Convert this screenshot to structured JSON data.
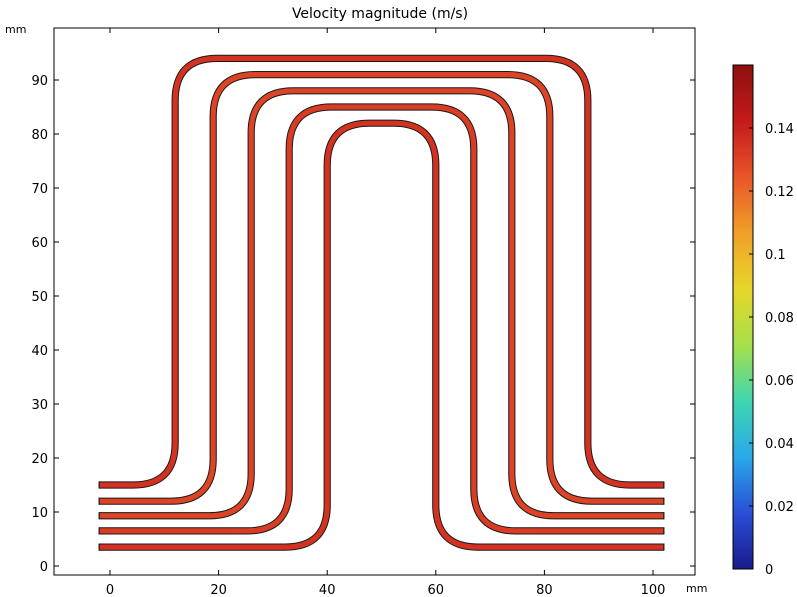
{
  "chart_data": {
    "type": "heatmap",
    "title": "Velocity magnitude (m/s)",
    "x_unit": "mm",
    "y_unit": "mm",
    "xlim": [
      -10,
      107
    ],
    "ylim": [
      -2,
      100
    ],
    "x_ticks": [
      {
        "value": 0,
        "label": "0"
      },
      {
        "value": 20,
        "label": "20"
      },
      {
        "value": 40,
        "label": "40"
      },
      {
        "value": 60,
        "label": "60"
      },
      {
        "value": 80,
        "label": "80"
      },
      {
        "value": 100,
        "label": "100"
      }
    ],
    "y_ticks": [
      {
        "value": 0,
        "label": "0"
      },
      {
        "value": 10,
        "label": "10"
      },
      {
        "value": 20,
        "label": "20"
      },
      {
        "value": 30,
        "label": "30"
      },
      {
        "value": 40,
        "label": "40"
      },
      {
        "value": 50,
        "label": "50"
      },
      {
        "value": 60,
        "label": "60"
      },
      {
        "value": 70,
        "label": "70"
      },
      {
        "value": 80,
        "label": "80"
      },
      {
        "value": 90,
        "label": "90"
      }
    ],
    "colorbar": {
      "range": [
        0,
        0.16
      ],
      "ticks": [
        {
          "value": 0,
          "label": "0"
        },
        {
          "value": 0.02,
          "label": "0.02"
        },
        {
          "value": 0.04,
          "label": "0.04"
        },
        {
          "value": 0.06,
          "label": "0.06"
        },
        {
          "value": 0.08,
          "label": "0.08"
        },
        {
          "value": 0.1,
          "label": "0.1"
        },
        {
          "value": 0.12,
          "label": "0.12"
        },
        {
          "value": 0.14,
          "label": "0.14"
        }
      ],
      "colormap": [
        "#1a1a8c",
        "#2a4fd6",
        "#2aa8e8",
        "#3fd6b0",
        "#a6e04a",
        "#e8d62a",
        "#f0a028",
        "#e8552a",
        "#c41a1a",
        "#8c1010"
      ]
    },
    "channels": [
      {
        "x_left": -2,
        "x_right": 102,
        "y_low": 15,
        "y_top": 94,
        "x_leg_left": 12,
        "x_leg_right": 88,
        "velocity": 0.135
      },
      {
        "x_left": -2,
        "x_right": 102,
        "y_low": 12,
        "y_top": 91,
        "x_leg_left": 19,
        "x_leg_right": 81,
        "velocity": 0.13
      },
      {
        "x_left": -2,
        "x_right": 102,
        "y_low": 9.3,
        "y_top": 88,
        "x_leg_left": 26,
        "x_leg_right": 74,
        "velocity": 0.13
      },
      {
        "x_left": -2,
        "x_right": 102,
        "y_low": 6.5,
        "y_top": 85,
        "x_leg_left": 33,
        "x_leg_right": 67,
        "velocity": 0.132
      },
      {
        "x_left": -2,
        "x_right": 102,
        "y_low": 3.5,
        "y_top": 82,
        "x_leg_left": 40,
        "x_leg_right": 60,
        "velocity": 0.135
      }
    ]
  }
}
